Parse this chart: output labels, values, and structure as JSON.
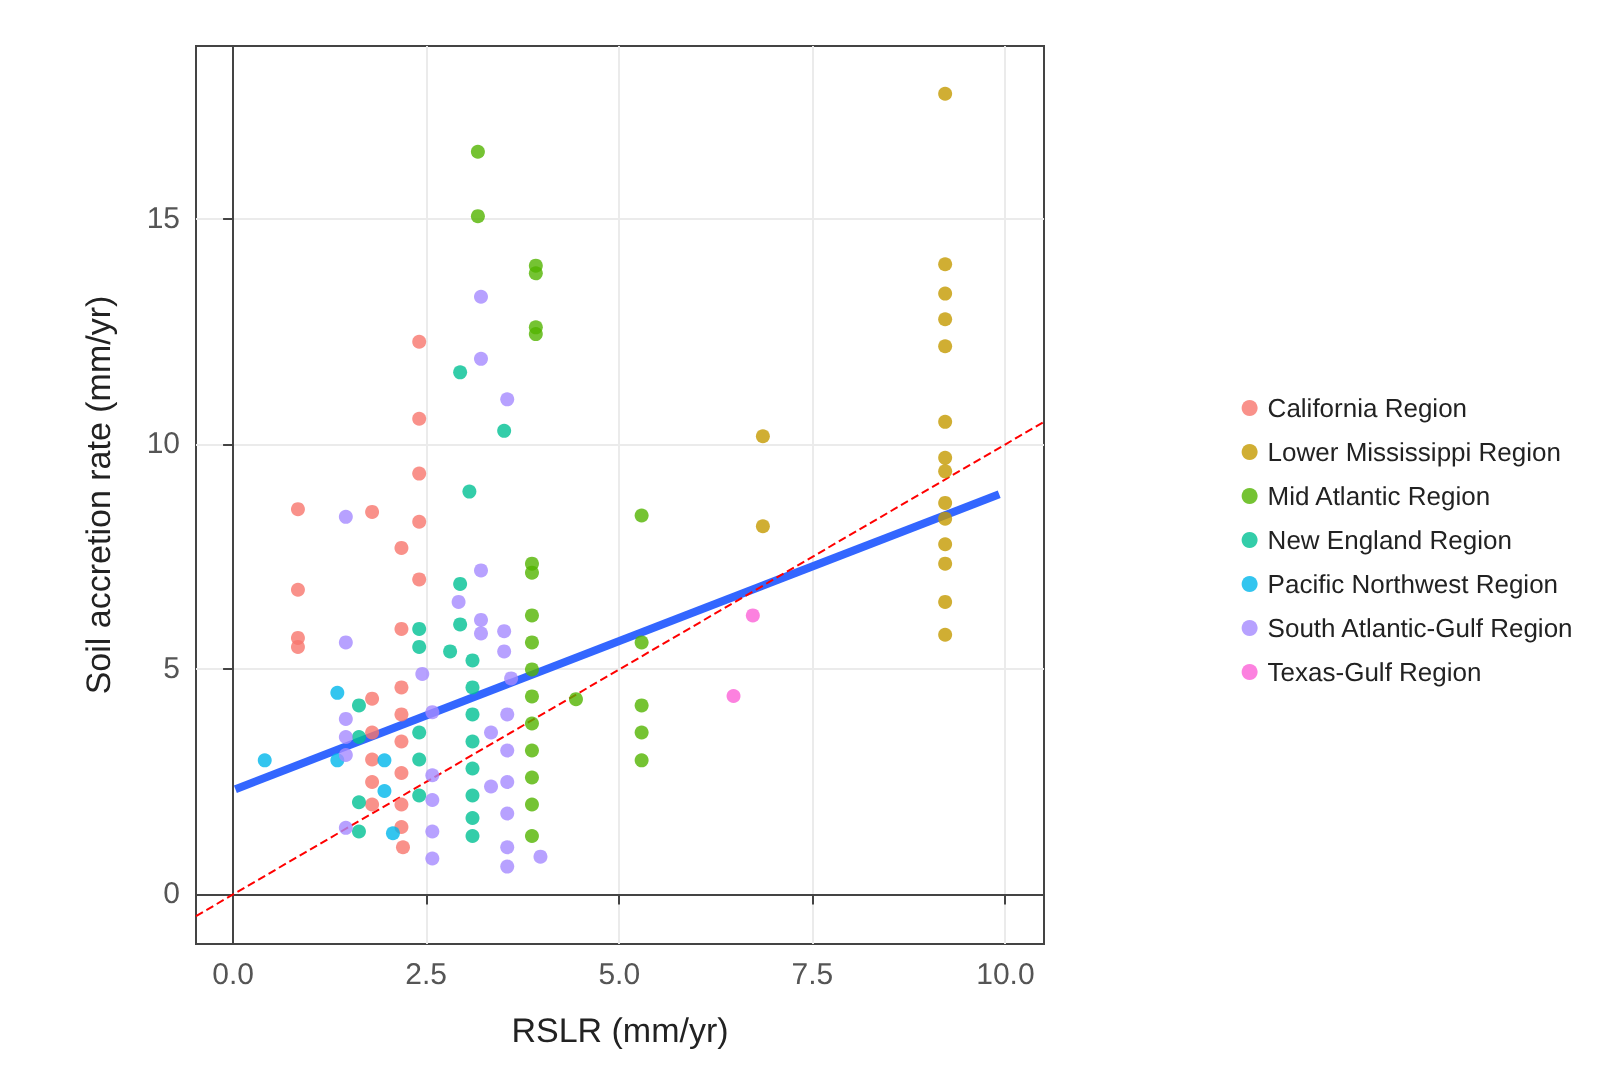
{
  "chart_data": {
    "type": "scatter",
    "xlabel": "RSLR (mm/yr)",
    "ylabel": "Soil accretion rate (mm/yr)",
    "xlim": [
      -0.48,
      10.5
    ],
    "ylim": [
      -1.1,
      18.85
    ],
    "xticks": [
      {
        "value": 0,
        "label": "0.0"
      },
      {
        "value": 2.5,
        "label": "2.5"
      },
      {
        "value": 5,
        "label": "5.0"
      },
      {
        "value": 7.5,
        "label": "7.5"
      },
      {
        "value": 10,
        "label": "10.0"
      }
    ],
    "yticks": [
      0,
      5,
      10,
      15
    ],
    "grid": true,
    "legend": "right",
    "marker": "circle",
    "series": [
      {
        "name": "California Region",
        "color": "#f8766d",
        "x": [
          0.84,
          0.84,
          0.84,
          0.84,
          1.8,
          1.8,
          1.8,
          1.8,
          1.8,
          1.8,
          2.41,
          2.41,
          2.41,
          2.41,
          2.18,
          2.41,
          2.18,
          2.18,
          2.18,
          2.18,
          2.18,
          2.18,
          2.18,
          2.2
        ],
        "values": [
          8.56,
          6.77,
          5.7,
          5.5,
          8.5,
          4.35,
          3.6,
          3.0,
          2.5,
          2.0,
          12.28,
          10.57,
          9.35,
          8.28,
          7.7,
          7.0,
          5.9,
          4.6,
          4.0,
          3.4,
          2.7,
          2.0,
          1.5,
          1.05
        ]
      },
      {
        "name": "Lower Mississippi Region",
        "color": "#c49a00",
        "x": [
          6.86,
          6.86,
          9.22,
          9.22,
          9.22,
          9.22,
          9.22,
          9.22,
          9.22,
          9.22,
          9.22,
          9.22,
          9.22,
          9.22,
          9.22,
          9.22
        ],
        "values": [
          10.18,
          8.18,
          17.79,
          14.0,
          13.35,
          12.78,
          12.18,
          10.5,
          9.7,
          9.4,
          8.7,
          8.35,
          7.78,
          7.35,
          6.5,
          5.77
        ]
      },
      {
        "name": "Mid Atlantic Region",
        "color": "#53b400",
        "x": [
          3.17,
          3.17,
          3.92,
          3.92,
          3.92,
          3.92,
          3.87,
          3.87,
          3.87,
          3.87,
          3.87,
          3.87,
          3.87,
          3.87,
          3.87,
          3.87,
          3.87,
          4.44,
          5.29,
          5.29,
          5.29,
          5.29,
          5.29
        ],
        "values": [
          16.5,
          15.07,
          13.97,
          13.8,
          12.6,
          12.45,
          7.35,
          7.15,
          6.2,
          5.6,
          5.0,
          4.4,
          3.8,
          3.2,
          2.6,
          2.0,
          1.3,
          4.34,
          8.42,
          5.6,
          4.2,
          3.6,
          2.98
        ]
      },
      {
        "name": "New England Region",
        "color": "#00c094",
        "x": [
          1.63,
          1.63,
          1.63,
          1.63,
          2.41,
          2.41,
          2.41,
          2.41,
          2.41,
          2.94,
          3.06,
          2.94,
          2.94,
          2.81,
          3.51,
          3.1,
          3.1,
          3.1,
          3.1,
          3.1,
          3.1,
          3.1,
          3.1
        ],
        "values": [
          4.2,
          3.5,
          2.05,
          1.4,
          5.9,
          5.5,
          3.6,
          3.0,
          2.2,
          11.6,
          8.95,
          6.9,
          6.0,
          5.4,
          10.3,
          5.2,
          4.6,
          4.0,
          3.4,
          2.8,
          2.2,
          1.7,
          1.3
        ]
      },
      {
        "name": "Pacific Northwest Region",
        "color": "#00b6eb",
        "x": [
          0.41,
          1.35,
          1.35,
          1.96,
          1.96,
          2.07
        ],
        "values": [
          2.98,
          4.48,
          2.98,
          2.98,
          2.3,
          1.36
        ]
      },
      {
        "name": "South Atlantic-Gulf Region",
        "color": "#a58aff",
        "x": [
          3.21,
          3.21,
          3.55,
          3.21,
          3.51,
          3.51,
          3.6,
          3.55,
          3.55,
          3.55,
          3.55,
          3.55,
          3.55,
          3.98,
          1.46,
          1.46,
          1.46,
          1.46,
          1.46,
          1.46,
          2.45,
          2.58,
          2.58,
          2.58,
          2.58,
          2.58,
          2.92,
          3.21,
          3.21,
          3.34,
          3.34
        ],
        "values": [
          13.28,
          11.9,
          11.0,
          7.2,
          5.85,
          5.4,
          4.8,
          4.0,
          3.2,
          2.5,
          1.8,
          1.05,
          0.62,
          0.84,
          8.39,
          5.6,
          3.9,
          3.5,
          3.1,
          1.48,
          4.9,
          4.05,
          2.65,
          2.1,
          1.4,
          0.8,
          6.5,
          6.1,
          5.8,
          3.6,
          2.4
        ]
      },
      {
        "name": "Texas-Gulf Region",
        "color": "#fb61d7",
        "x": [
          6.73,
          6.48
        ],
        "values": [
          6.2,
          4.41
        ]
      },
      {
        "type": "line",
        "color": "#3366ff",
        "marker": "none",
        "x": [
          0.03,
          9.92
        ],
        "values": [
          2.34,
          8.89
        ]
      },
      {
        "type": "line",
        "color": "#ff0000",
        "marker": "none",
        "line_style": "dashed",
        "x": [
          -0.48,
          10.5
        ],
        "values": [
          -0.48,
          10.5
        ]
      }
    ]
  }
}
